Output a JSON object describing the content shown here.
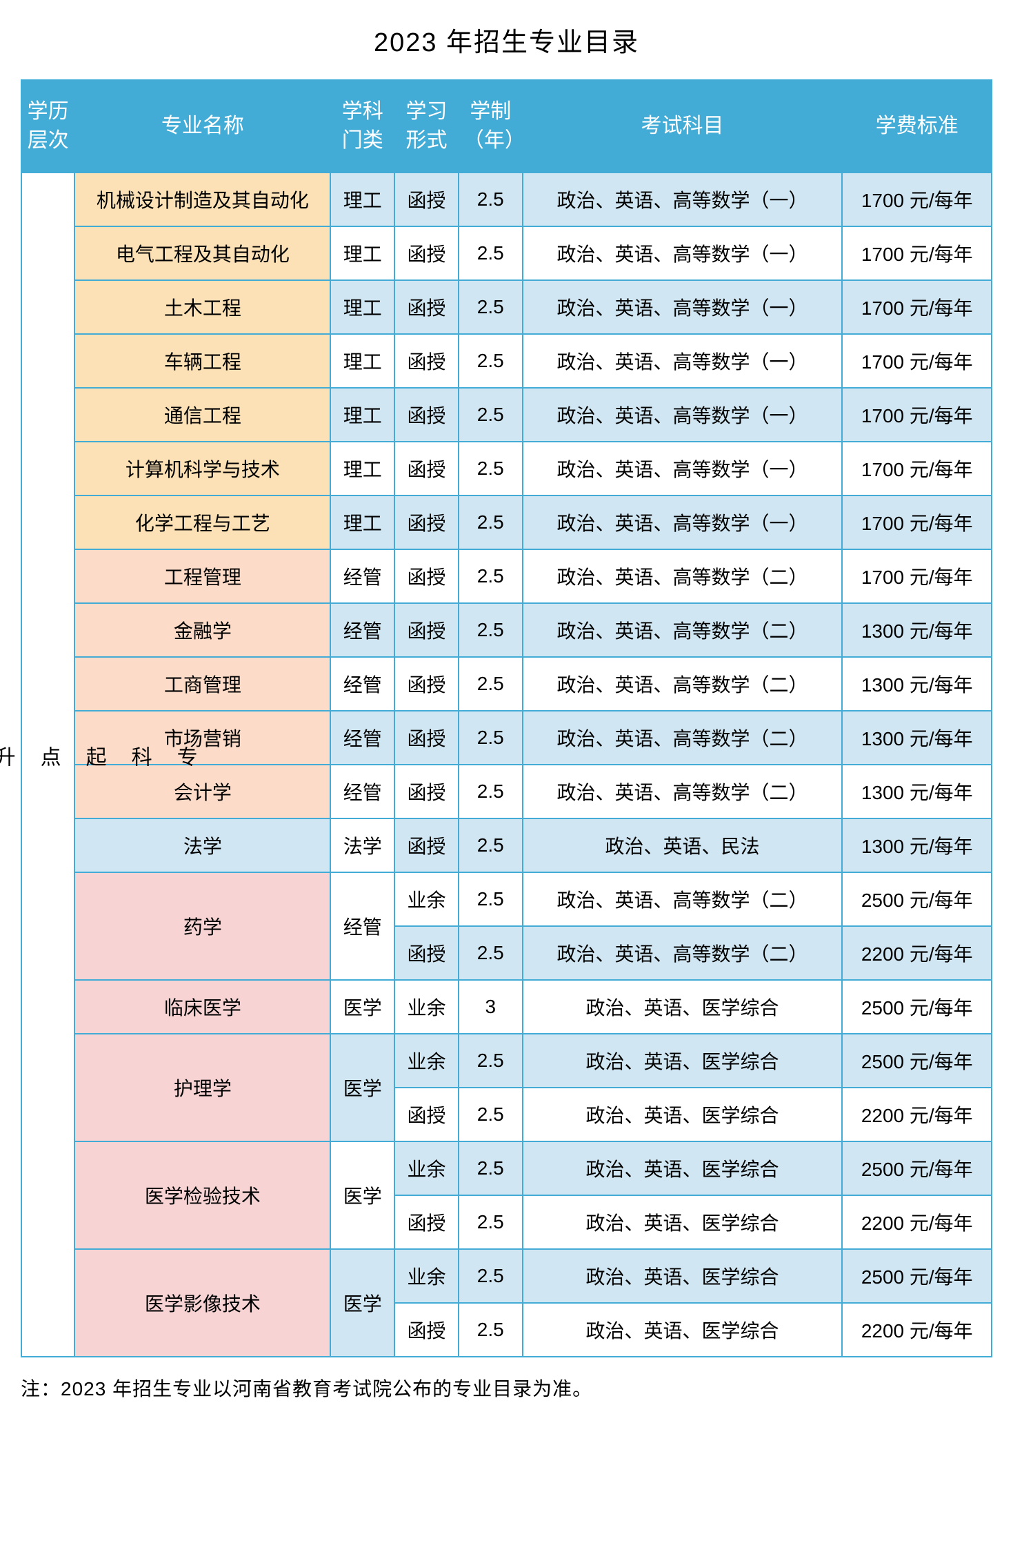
{
  "title": "2023 年招生专业目录",
  "footnote": "注：2023 年招生专业以河南省教育考试院公布的专业目录为准。",
  "colors": {
    "header_bg": "#43acd6",
    "header_fg": "#ffffff",
    "border": "#43acd6",
    "orange": "#fbe1b5",
    "pink": "#f7d3d3",
    "salmon": "#fcdbc8",
    "blue": "#d0e7f3",
    "white": "#ffffff"
  },
  "headers": {
    "level": "学历层次",
    "major": "专业名称",
    "category": "学科门类",
    "form": "学习形式",
    "duration": "学制（年）",
    "exam": "考试科目",
    "fee": "学费标准"
  },
  "level_label": "专科起点升本科",
  "rows": [
    {
      "major": "机械设计制造及其自动化",
      "major_bg": "orange",
      "category": "理工",
      "cat_bg": "blue",
      "form": "函授",
      "form_bg": "blue",
      "duration": "2.5",
      "dur_bg": "blue",
      "exam": "政治、英语、高等数学（一）",
      "exam_bg": "blue",
      "fee": "1700 元/每年",
      "fee_bg": "blue"
    },
    {
      "major": "电气工程及其自动化",
      "major_bg": "orange",
      "category": "理工",
      "cat_bg": "white",
      "form": "函授",
      "form_bg": "white",
      "duration": "2.5",
      "dur_bg": "white",
      "exam": "政治、英语、高等数学（一）",
      "exam_bg": "white",
      "fee": "1700 元/每年",
      "fee_bg": "white"
    },
    {
      "major": "土木工程",
      "major_bg": "orange",
      "category": "理工",
      "cat_bg": "blue",
      "form": "函授",
      "form_bg": "blue",
      "duration": "2.5",
      "dur_bg": "blue",
      "exam": "政治、英语、高等数学（一）",
      "exam_bg": "blue",
      "fee": "1700 元/每年",
      "fee_bg": "blue"
    },
    {
      "major": "车辆工程",
      "major_bg": "orange",
      "category": "理工",
      "cat_bg": "white",
      "form": "函授",
      "form_bg": "white",
      "duration": "2.5",
      "dur_bg": "white",
      "exam": "政治、英语、高等数学（一）",
      "exam_bg": "white",
      "fee": "1700 元/每年",
      "fee_bg": "white"
    },
    {
      "major": "通信工程",
      "major_bg": "orange",
      "category": "理工",
      "cat_bg": "blue",
      "form": "函授",
      "form_bg": "blue",
      "duration": "2.5",
      "dur_bg": "blue",
      "exam": "政治、英语、高等数学（一）",
      "exam_bg": "blue",
      "fee": "1700 元/每年",
      "fee_bg": "blue"
    },
    {
      "major": "计算机科学与技术",
      "major_bg": "orange",
      "category": "理工",
      "cat_bg": "white",
      "form": "函授",
      "form_bg": "white",
      "duration": "2.5",
      "dur_bg": "white",
      "exam": "政治、英语、高等数学（一）",
      "exam_bg": "white",
      "fee": "1700 元/每年",
      "fee_bg": "white"
    },
    {
      "major": "化学工程与工艺",
      "major_bg": "orange",
      "category": "理工",
      "cat_bg": "blue",
      "form": "函授",
      "form_bg": "blue",
      "duration": "2.5",
      "dur_bg": "blue",
      "exam": "政治、英语、高等数学（一）",
      "exam_bg": "blue",
      "fee": "1700 元/每年",
      "fee_bg": "blue"
    },
    {
      "major": "工程管理",
      "major_bg": "salmon",
      "category": "经管",
      "cat_bg": "white",
      "form": "函授",
      "form_bg": "white",
      "duration": "2.5",
      "dur_bg": "white",
      "exam": "政治、英语、高等数学（二）",
      "exam_bg": "white",
      "fee": "1700 元/每年",
      "fee_bg": "white"
    },
    {
      "major": "金融学",
      "major_bg": "salmon",
      "category": "经管",
      "cat_bg": "blue",
      "form": "函授",
      "form_bg": "blue",
      "duration": "2.5",
      "dur_bg": "blue",
      "exam": "政治、英语、高等数学（二）",
      "exam_bg": "blue",
      "fee": "1300 元/每年",
      "fee_bg": "blue"
    },
    {
      "major": "工商管理",
      "major_bg": "salmon",
      "category": "经管",
      "cat_bg": "white",
      "form": "函授",
      "form_bg": "white",
      "duration": "2.5",
      "dur_bg": "white",
      "exam": "政治、英语、高等数学（二）",
      "exam_bg": "white",
      "fee": "1300 元/每年",
      "fee_bg": "white"
    },
    {
      "major": "市场营销",
      "major_bg": "salmon",
      "category": "经管",
      "cat_bg": "blue",
      "form": "函授",
      "form_bg": "blue",
      "duration": "2.5",
      "dur_bg": "blue",
      "exam": "政治、英语、高等数学（二）",
      "exam_bg": "blue",
      "fee": "1300 元/每年",
      "fee_bg": "blue"
    },
    {
      "major": "会计学",
      "major_bg": "salmon",
      "category": "经管",
      "cat_bg": "white",
      "form": "函授",
      "form_bg": "white",
      "duration": "2.5",
      "dur_bg": "white",
      "exam": "政治、英语、高等数学（二）",
      "exam_bg": "white",
      "fee": "1300 元/每年",
      "fee_bg": "white"
    },
    {
      "major": "法学",
      "major_bg": "blue",
      "category": "法学",
      "cat_bg": "white",
      "form": "函授",
      "form_bg": "blue",
      "duration": "2.5",
      "dur_bg": "blue",
      "exam": "政治、英语、民法",
      "exam_bg": "blue",
      "fee": "1300 元/每年",
      "fee_bg": "blue"
    },
    {
      "major": "药学",
      "major_bg": "pink",
      "major_rowspan": 2,
      "category": "经管",
      "cat_bg": "white",
      "cat_rowspan": 2,
      "form": "业余",
      "form_bg": "white",
      "duration": "2.5",
      "dur_bg": "white",
      "exam": "政治、英语、高等数学（二）",
      "exam_bg": "white",
      "fee": "2500 元/每年",
      "fee_bg": "white"
    },
    {
      "form": "函授",
      "form_bg": "blue",
      "duration": "2.5",
      "dur_bg": "blue",
      "exam": "政治、英语、高等数学（二）",
      "exam_bg": "blue",
      "fee": "2200 元/每年",
      "fee_bg": "blue"
    },
    {
      "major": "临床医学",
      "major_bg": "pink",
      "category": "医学",
      "cat_bg": "white",
      "form": "业余",
      "form_bg": "white",
      "duration": "3",
      "dur_bg": "white",
      "exam": "政治、英语、医学综合",
      "exam_bg": "white",
      "fee": "2500 元/每年",
      "fee_bg": "white"
    },
    {
      "major": "护理学",
      "major_bg": "pink",
      "major_rowspan": 2,
      "category": "医学",
      "cat_bg": "blue",
      "cat_rowspan": 2,
      "form": "业余",
      "form_bg": "blue",
      "duration": "2.5",
      "dur_bg": "blue",
      "exam": "政治、英语、医学综合",
      "exam_bg": "blue",
      "fee": "2500 元/每年",
      "fee_bg": "blue"
    },
    {
      "form": "函授",
      "form_bg": "white",
      "duration": "2.5",
      "dur_bg": "white",
      "exam": "政治、英语、医学综合",
      "exam_bg": "white",
      "fee": "2200 元/每年",
      "fee_bg": "white"
    },
    {
      "major": "医学检验技术",
      "major_bg": "pink",
      "major_rowspan": 2,
      "category": "医学",
      "cat_bg": "white",
      "cat_rowspan": 2,
      "form": "业余",
      "form_bg": "blue",
      "duration": "2.5",
      "dur_bg": "blue",
      "exam": "政治、英语、医学综合",
      "exam_bg": "blue",
      "fee": "2500 元/每年",
      "fee_bg": "blue"
    },
    {
      "form": "函授",
      "form_bg": "white",
      "duration": "2.5",
      "dur_bg": "white",
      "exam": "政治、英语、医学综合",
      "exam_bg": "white",
      "fee": "2200 元/每年",
      "fee_bg": "white"
    },
    {
      "major": "医学影像技术",
      "major_bg": "pink",
      "major_rowspan": 2,
      "category": "医学",
      "cat_bg": "blue",
      "cat_rowspan": 2,
      "form": "业余",
      "form_bg": "blue",
      "duration": "2.5",
      "dur_bg": "blue",
      "exam": "政治、英语、医学综合",
      "exam_bg": "blue",
      "fee": "2500 元/每年",
      "fee_bg": "blue"
    },
    {
      "form": "函授",
      "form_bg": "white",
      "duration": "2.5",
      "dur_bg": "white",
      "exam": "政治、英语、医学综合",
      "exam_bg": "white",
      "fee": "2200 元/每年",
      "fee_bg": "white"
    }
  ]
}
